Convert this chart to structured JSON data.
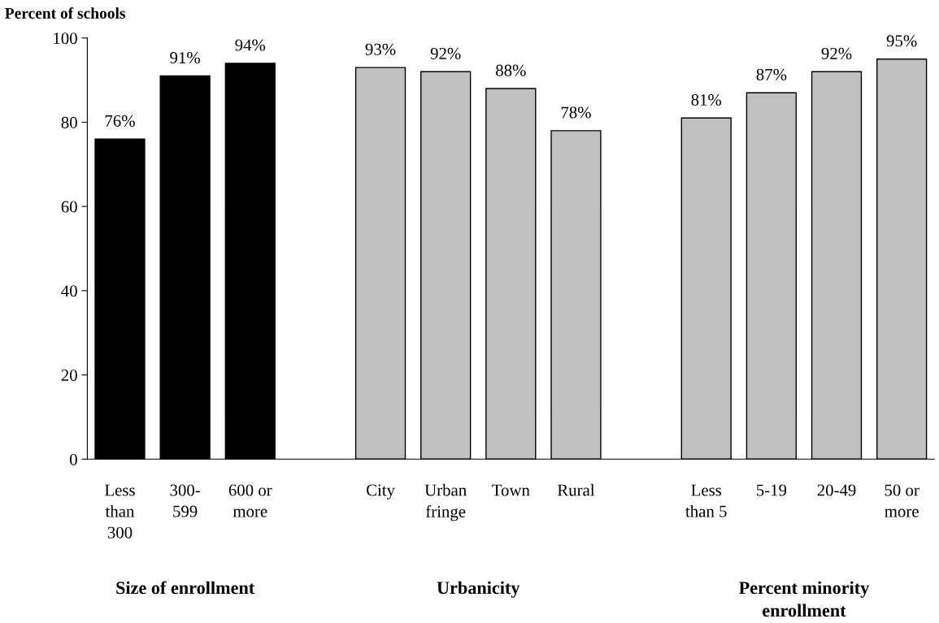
{
  "chart_data": {
    "type": "bar",
    "ylabel": "Percent of schools",
    "categories": [
      "Less\nthan\n300",
      "300-\n599",
      "600 or\nmore",
      null,
      "City",
      "Urban\nfringe",
      "Town",
      "Rural",
      null,
      "Less\nthan 5",
      "5-19",
      "20-49",
      "50 or\nmore"
    ],
    "values": [
      76,
      91,
      94,
      null,
      93,
      92,
      88,
      78,
      null,
      81,
      87,
      92,
      95
    ],
    "colors": [
      "#000000",
      "#000000",
      "#000000",
      null,
      "#c0c0c0",
      "#c0c0c0",
      "#c0c0c0",
      "#c0c0c0",
      null,
      "#c0c0c0",
      "#c0c0c0",
      "#c0c0c0",
      "#c0c0c0"
    ],
    "value_labels": [
      "76%",
      "91%",
      "94%",
      null,
      "93%",
      "92%",
      "88%",
      "78%",
      null,
      "81%",
      "87%",
      "92%",
      "95%"
    ],
    "ylim": [
      0,
      100
    ],
    "yticks": [
      0,
      20,
      40,
      60,
      80,
      100
    ],
    "grid": false,
    "legend": false,
    "annotations": [
      "Size of enrollment",
      "Urbanicity",
      "Percent minority\nenrollment"
    ]
  }
}
